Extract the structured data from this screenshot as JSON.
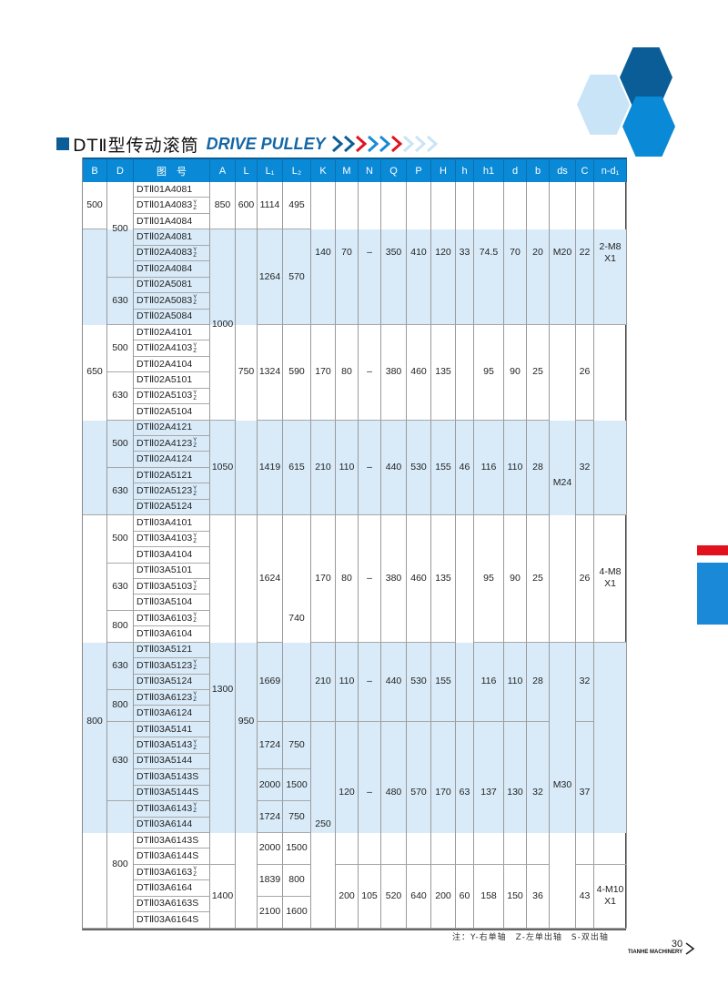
{
  "title": {
    "cn": "DTⅡ型传动滚筒",
    "en": "DRIVE PULLEY"
  },
  "colors": {
    "header": "#0a8ad6",
    "band": "#d9ebf9",
    "dark_blue": "#0a5d96",
    "red": "#e1121d",
    "light_blue": "#c9e4f6"
  },
  "columns": [
    "B",
    "D",
    "图　号",
    "A",
    "L",
    "L₁",
    "L₂",
    "K",
    "M",
    "N",
    "Q",
    "P",
    "H",
    "h",
    "h1",
    "d",
    "b",
    "ds",
    "C",
    "n-d₁"
  ],
  "codes": [
    {
      "code": "DTⅡ01A4081"
    },
    {
      "code": "DTⅡ01A4083",
      "suffix": [
        "Y",
        "Z"
      ]
    },
    {
      "code": "DTⅡ01A4084"
    },
    {
      "code": "DTⅡ02A4081"
    },
    {
      "code": "DTⅡ02A4083",
      "suffix": [
        "Y",
        "Z"
      ]
    },
    {
      "code": "DTⅡ02A4084"
    },
    {
      "code": "DTⅡ02A5081"
    },
    {
      "code": "DTⅡ02A5083",
      "suffix": [
        "Y",
        "Z"
      ]
    },
    {
      "code": "DTⅡ02A5084"
    },
    {
      "code": "DTⅡ02A4101"
    },
    {
      "code": "DTⅡ02A4103",
      "suffix": [
        "Y",
        "Z"
      ]
    },
    {
      "code": "DTⅡ02A4104"
    },
    {
      "code": "DTⅡ02A5101"
    },
    {
      "code": "DTⅡ02A5103",
      "suffix": [
        "Y",
        "Z"
      ]
    },
    {
      "code": "DTⅡ02A5104"
    },
    {
      "code": "DTⅡ02A4121"
    },
    {
      "code": "DTⅡ02A4123",
      "suffix": [
        "Y",
        "Z"
      ]
    },
    {
      "code": "DTⅡ02A4124"
    },
    {
      "code": "DTⅡ02A5121"
    },
    {
      "code": "DTⅡ02A5123",
      "suffix": [
        "Y",
        "Z"
      ]
    },
    {
      "code": "DTⅡ02A5124"
    },
    {
      "code": "DTⅡ03A4101"
    },
    {
      "code": "DTⅡ03A4103",
      "suffix": [
        "Y",
        "Z"
      ]
    },
    {
      "code": "DTⅡ03A4104"
    },
    {
      "code": "DTⅡ03A5101"
    },
    {
      "code": "DTⅡ03A5103",
      "suffix": [
        "Y",
        "Z"
      ]
    },
    {
      "code": "DTⅡ03A5104"
    },
    {
      "code": "DTⅡ03A6103",
      "suffix": [
        "Y",
        "Z"
      ]
    },
    {
      "code": "DTⅡ03A6104"
    },
    {
      "code": "DTⅡ03A5121"
    },
    {
      "code": "DTⅡ03A5123",
      "suffix": [
        "Y",
        "Z"
      ]
    },
    {
      "code": "DTⅡ03A5124"
    },
    {
      "code": "DTⅡ03A6123",
      "suffix": [
        "Y",
        "Z"
      ]
    },
    {
      "code": "DTⅡ03A6124"
    },
    {
      "code": "DTⅡ03A5141"
    },
    {
      "code": "DTⅡ03A5143",
      "suffix": [
        "Y",
        "Z"
      ]
    },
    {
      "code": "DTⅡ03A5144"
    },
    {
      "code": "DTⅡ03A5143S"
    },
    {
      "code": "DTⅡ03A5144S"
    },
    {
      "code": "DTⅡ03A6143",
      "suffix": [
        "Y",
        "Z"
      ]
    },
    {
      "code": "DTⅡ03A6144"
    },
    {
      "code": "DTⅡ03A6143S"
    },
    {
      "code": "DTⅡ03A6144S"
    },
    {
      "code": "DTⅡ03A6163",
      "suffix": [
        "Y",
        "Z"
      ]
    },
    {
      "code": "DTⅡ03A6164"
    },
    {
      "code": "DTⅡ03A6163S"
    },
    {
      "code": "DTⅡ03A6164S"
    }
  ],
  "values": {
    "B": [
      "500",
      "650",
      "800"
    ],
    "D": [
      "500",
      "630",
      "500",
      "630",
      "500",
      "630",
      "500",
      "630",
      "800",
      "630",
      "800",
      "630",
      "800"
    ],
    "A": [
      "850",
      "1000",
      "1050",
      "1300",
      "1400"
    ],
    "L": [
      "600",
      "750",
      "950"
    ],
    "L1": [
      "1114",
      "1264",
      "1324",
      "1419",
      "1624",
      "1669",
      "1724",
      "2000",
      "1724",
      "2000",
      "1839",
      "2100"
    ],
    "L2": [
      "495",
      "570",
      "590",
      "615",
      "740",
      "750",
      "1500",
      "750",
      "1500",
      "800",
      "1600"
    ],
    "K": [
      "140",
      "170",
      "210",
      "170",
      "210",
      "250"
    ],
    "M": [
      "70",
      "80",
      "110",
      "80",
      "110",
      "120",
      "200"
    ],
    "N": [
      "–",
      "–",
      "–",
      "–",
      "–",
      "–",
      "105"
    ],
    "Q": [
      "350",
      "380",
      "440",
      "380",
      "440",
      "480",
      "520"
    ],
    "P": [
      "410",
      "460",
      "530",
      "460",
      "530",
      "570",
      "640"
    ],
    "H": [
      "120",
      "135",
      "155",
      "135",
      "155",
      "170",
      "200"
    ],
    "h": [
      "33",
      "46",
      "63",
      "60"
    ],
    "h1": [
      "74.5",
      "95",
      "116",
      "95",
      "116",
      "137",
      "158"
    ],
    "d": [
      "70",
      "90",
      "110",
      "90",
      "110",
      "130",
      "150"
    ],
    "b": [
      "20",
      "25",
      "28",
      "25",
      "28",
      "32",
      "36"
    ],
    "ds": [
      "M20",
      "M24",
      "M30"
    ],
    "C": [
      "22",
      "26",
      "32",
      "26",
      "32",
      "37",
      "43"
    ],
    "nd": [
      "2-M8\nX1",
      "4-M8\nX1",
      "4-M10\nX1"
    ]
  },
  "note": "注：Y-右单轴　Z-左单出轴　S-双出轴",
  "footer": {
    "page": "30",
    "brand": "TIANHE MACHINERY"
  }
}
